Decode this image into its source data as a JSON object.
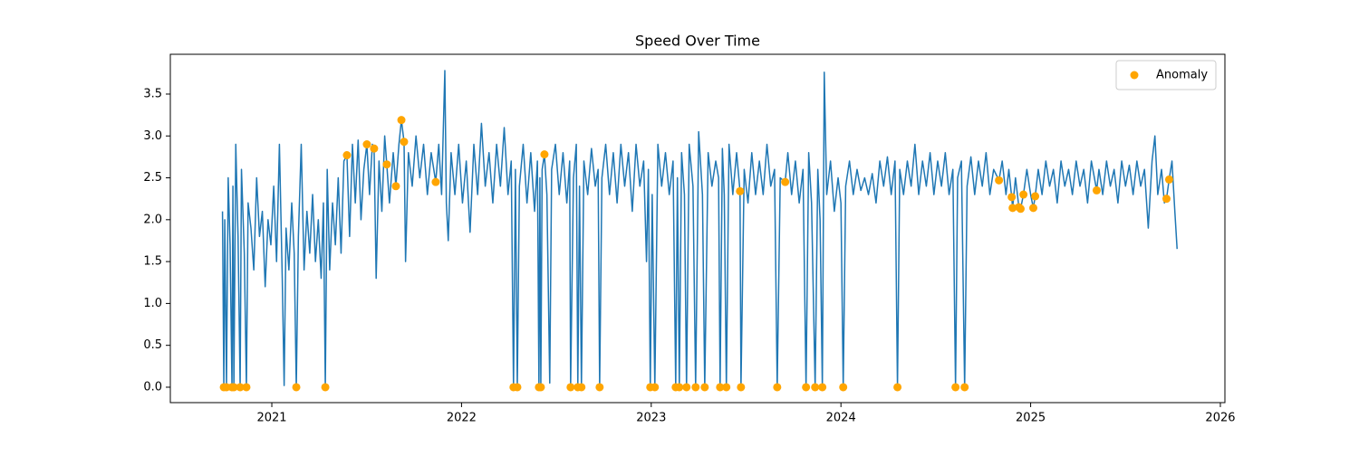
{
  "chart_data": {
    "type": "line",
    "title": "Speed Over Time",
    "xlim": [
      2020.465,
      2026.024
    ],
    "xticks": [
      2021,
      2022,
      2023,
      2024,
      2025,
      2026
    ],
    "ylim": [
      -0.184,
      3.975
    ],
    "yticks": [
      {
        "value": 0,
        "label": "0.0"
      },
      0.5,
      {
        "value": 1,
        "label": "1.0"
      },
      1.5,
      {
        "value": 2,
        "label": "2.0"
      },
      2.5,
      {
        "value": 3,
        "label": "3.0"
      },
      3.5
    ],
    "legend": "upper right",
    "series": [
      {
        "name": null,
        "type": "line",
        "color": "#1f77b4",
        "x": [
          2020.74,
          2020.747,
          2020.752,
          2020.761,
          2020.77,
          2020.78,
          2020.79,
          2020.795,
          2020.8,
          2020.81,
          2020.822,
          2020.833,
          2020.84,
          2020.855,
          2020.866,
          2020.875,
          2020.89,
          2020.905,
          2020.92,
          2020.935,
          2020.95,
          2020.965,
          2020.98,
          2020.995,
          2021.01,
          2021.025,
          2021.04,
          2021.055,
          2021.065,
          2021.075,
          2021.09,
          2021.105,
          2021.118,
          2021.129,
          2021.14,
          2021.155,
          2021.17,
          2021.185,
          2021.2,
          2021.215,
          2021.23,
          2021.245,
          2021.26,
          2021.272,
          2021.282,
          2021.292,
          2021.305,
          2021.32,
          2021.335,
          2021.35,
          2021.365,
          2021.38,
          2021.396,
          2021.41,
          2021.425,
          2021.44,
          2021.455,
          2021.47,
          2021.485,
          2021.501,
          2021.515,
          2021.53,
          2021.539,
          2021.55,
          2021.565,
          2021.58,
          2021.595,
          2021.606,
          2021.62,
          2021.64,
          2021.654,
          2021.67,
          2021.683,
          2021.697,
          2021.705,
          2021.72,
          2021.74,
          2021.76,
          2021.78,
          2021.8,
          2021.82,
          2021.84,
          2021.864,
          2021.88,
          2021.895,
          2021.912,
          2021.92,
          2021.93,
          2021.945,
          2021.965,
          2021.985,
          2022.005,
          2022.025,
          2022.045,
          2022.065,
          2022.085,
          2022.105,
          2022.125,
          2022.145,
          2022.165,
          2022.185,
          2022.205,
          2022.225,
          2022.245,
          2022.262,
          2022.274,
          2022.284,
          2022.294,
          2022.305,
          2022.325,
          2022.345,
          2022.365,
          2022.385,
          2022.4,
          2022.408,
          2022.413,
          2022.418,
          2022.425,
          2022.437,
          2022.45,
          2022.465,
          2022.475,
          2022.495,
          2022.515,
          2022.535,
          2022.555,
          2022.57,
          2022.575,
          2022.59,
          2022.605,
          2022.613,
          2022.622,
          2022.632,
          2022.645,
          2022.665,
          2022.685,
          2022.705,
          2022.72,
          2022.728,
          2022.74,
          2022.76,
          2022.78,
          2022.8,
          2022.82,
          2022.84,
          2022.86,
          2022.88,
          2022.9,
          2022.92,
          2022.94,
          2022.96,
          2022.975,
          2022.985,
          2022.995,
          2023.005,
          2023.019,
          2023.035,
          2023.055,
          2023.075,
          2023.095,
          2023.115,
          2023.129,
          2023.138,
          2023.148,
          2023.16,
          2023.175,
          2023.186,
          2023.2,
          2023.22,
          2023.234,
          2023.25,
          2023.27,
          2023.282,
          2023.3,
          2023.32,
          2023.34,
          2023.355,
          2023.363,
          2023.375,
          2023.385,
          2023.396,
          2023.41,
          2023.43,
          2023.45,
          2023.468,
          2023.473,
          2023.49,
          2023.51,
          2023.53,
          2023.55,
          2023.57,
          2023.59,
          2023.61,
          2023.63,
          2023.65,
          2023.664,
          2023.68,
          2023.706,
          2023.72,
          2023.74,
          2023.76,
          2023.78,
          2023.8,
          2023.816,
          2023.83,
          2023.845,
          2023.864,
          2023.878,
          2023.89,
          2023.902,
          2023.912,
          2023.925,
          2023.945,
          2023.965,
          2023.985,
          2024.0,
          2024.012,
          2024.025,
          2024.045,
          2024.065,
          2024.085,
          2024.105,
          2024.125,
          2024.145,
          2024.165,
          2024.185,
          2024.205,
          2024.225,
          2024.245,
          2024.265,
          2024.285,
          2024.298,
          2024.31,
          2024.33,
          2024.35,
          2024.37,
          2024.39,
          2024.41,
          2024.43,
          2024.45,
          2024.47,
          2024.49,
          2024.51,
          2024.53,
          2024.55,
          2024.57,
          2024.59,
          2024.604,
          2024.615,
          2024.635,
          2024.652,
          2024.665,
          2024.685,
          2024.705,
          2024.725,
          2024.745,
          2024.765,
          2024.785,
          2024.805,
          2024.833,
          2024.85,
          2024.87,
          2024.885,
          2024.9,
          2024.905,
          2024.92,
          2024.938,
          2024.947,
          2024.962,
          2024.98,
          2025.0,
          2025.014,
          2025.024,
          2025.04,
          2025.06,
          2025.08,
          2025.1,
          2025.12,
          2025.14,
          2025.16,
          2025.18,
          2025.2,
          2025.22,
          2025.24,
          2025.26,
          2025.28,
          2025.3,
          2025.32,
          2025.348,
          2025.36,
          2025.38,
          2025.4,
          2025.42,
          2025.44,
          2025.46,
          2025.48,
          2025.5,
          2025.52,
          2025.54,
          2025.56,
          2025.58,
          2025.6,
          2025.62,
          2025.64,
          2025.655,
          2025.67,
          2025.69,
          2025.705,
          2025.716,
          2025.73,
          2025.745,
          2025.76,
          2025.772
        ],
        "values": [
          2.1,
          0,
          2.0,
          0,
          2.5,
          1.7,
          0,
          2.4,
          0,
          2.9,
          1.8,
          0,
          2.6,
          1.6,
          0,
          2.2,
          1.9,
          1.4,
          2.5,
          1.8,
          2.1,
          1.2,
          2.0,
          1.7,
          2.4,
          1.5,
          2.9,
          1.3,
          0.02,
          1.9,
          1.4,
          2.2,
          1.6,
          0,
          1.8,
          2.9,
          1.4,
          2.1,
          1.6,
          2.3,
          1.5,
          2.0,
          1.3,
          2.2,
          0,
          2.6,
          1.4,
          2.2,
          1.7,
          2.5,
          1.6,
          2.7,
          2.77,
          1.8,
          2.9,
          2.2,
          2.95,
          2.0,
          2.6,
          2.9,
          2.3,
          2.9,
          2.85,
          1.3,
          2.7,
          2.1,
          3.0,
          2.66,
          2.2,
          2.8,
          2.4,
          2.9,
          3.19,
          2.93,
          1.5,
          2.8,
          2.4,
          3.0,
          2.5,
          2.9,
          2.3,
          2.8,
          2.45,
          2.9,
          2.3,
          3.78,
          2.2,
          1.75,
          2.8,
          2.3,
          2.9,
          2.2,
          2.7,
          1.85,
          2.9,
          2.3,
          3.15,
          2.4,
          2.8,
          2.2,
          2.9,
          2.4,
          3.1,
          2.3,
          2.7,
          0,
          2.6,
          0,
          2.4,
          2.9,
          2.2,
          2.8,
          2.1,
          2.7,
          0,
          2.5,
          0,
          2.6,
          2.78,
          2.3,
          0.05,
          2.6,
          2.9,
          2.3,
          2.8,
          2.2,
          2.7,
          0,
          2.5,
          2.9,
          0,
          2.4,
          0,
          2.7,
          2.3,
          2.85,
          2.4,
          2.6,
          0,
          2.5,
          2.9,
          2.3,
          2.8,
          2.2,
          2.9,
          2.4,
          2.8,
          2.1,
          2.9,
          2.4,
          2.7,
          1.5,
          2.6,
          0,
          2.3,
          0,
          2.9,
          2.4,
          2.8,
          2.3,
          2.7,
          0,
          2.5,
          0,
          2.8,
          2.3,
          0,
          2.9,
          2.4,
          0,
          3.05,
          2.3,
          0,
          2.8,
          2.4,
          2.7,
          2.5,
          0,
          2.85,
          2.3,
          0,
          2.9,
          2.3,
          2.8,
          2.34,
          0,
          2.6,
          2.2,
          2.8,
          2.3,
          2.7,
          2.3,
          2.9,
          2.4,
          2.6,
          0,
          2.5,
          2.45,
          2.8,
          2.3,
          2.7,
          2.2,
          2.6,
          0,
          2.8,
          2.2,
          0,
          2.6,
          2.0,
          0,
          3.76,
          2.3,
          2.7,
          2.1,
          2.5,
          2.2,
          0,
          2.4,
          2.7,
          2.3,
          2.6,
          2.35,
          2.5,
          2.3,
          2.55,
          2.2,
          2.7,
          2.4,
          2.75,
          2.3,
          2.7,
          0,
          2.6,
          2.3,
          2.7,
          2.4,
          2.9,
          2.3,
          2.7,
          2.4,
          2.8,
          2.3,
          2.7,
          2.4,
          2.8,
          2.3,
          2.6,
          0,
          2.5,
          2.7,
          0,
          2.4,
          2.75,
          2.3,
          2.7,
          2.4,
          2.8,
          2.3,
          2.6,
          2.47,
          2.7,
          2.3,
          2.6,
          2.27,
          2.14,
          2.5,
          2.15,
          2.13,
          2.3,
          2.6,
          2.3,
          2.14,
          2.28,
          2.6,
          2.3,
          2.7,
          2.4,
          2.6,
          2.2,
          2.7,
          2.4,
          2.6,
          2.3,
          2.7,
          2.4,
          2.6,
          2.2,
          2.7,
          2.35,
          2.6,
          2.3,
          2.7,
          2.4,
          2.6,
          2.2,
          2.7,
          2.4,
          2.65,
          2.3,
          2.7,
          2.4,
          2.6,
          1.9,
          2.7,
          3.0,
          2.3,
          2.6,
          2.2,
          2.25,
          2.48,
          2.7,
          2.1,
          1.65
        ]
      },
      {
        "name": "Anomaly",
        "type": "scatter",
        "color": "#ffa500",
        "x": [
          2020.747,
          2020.761,
          2020.79,
          2020.8,
          2020.833,
          2020.866,
          2021.129,
          2021.282,
          2022.274,
          2022.294,
          2022.408,
          2022.418,
          2022.575,
          2022.613,
          2022.632,
          2022.728,
          2022.995,
          2023.019,
          2023.129,
          2023.148,
          2023.186,
          2023.234,
          2023.282,
          2023.363,
          2023.396,
          2023.473,
          2023.664,
          2023.816,
          2023.864,
          2023.902,
          2024.012,
          2024.298,
          2024.604,
          2024.652,
          2021.396,
          2021.501,
          2021.539,
          2021.606,
          2021.654,
          2021.683,
          2021.697,
          2021.864,
          2022.437,
          2023.468,
          2023.706,
          2024.833,
          2024.9,
          2024.905,
          2024.938,
          2024.947,
          2024.962,
          2025.014,
          2025.024,
          2025.348,
          2025.716,
          2025.73
        ],
        "values": [
          0,
          0,
          0,
          0,
          0,
          0,
          0,
          0,
          0,
          0,
          0,
          0,
          0,
          0,
          0,
          0,
          0,
          0,
          0,
          0,
          0,
          0,
          0,
          0,
          0,
          0,
          0,
          0,
          0,
          0,
          0,
          0,
          0,
          0,
          2.77,
          2.9,
          2.85,
          2.66,
          2.4,
          3.19,
          2.93,
          2.45,
          2.78,
          2.34,
          2.45,
          2.47,
          2.27,
          2.14,
          2.15,
          2.13,
          2.3,
          2.14,
          2.28,
          2.35,
          2.25,
          2.48
        ]
      }
    ]
  }
}
